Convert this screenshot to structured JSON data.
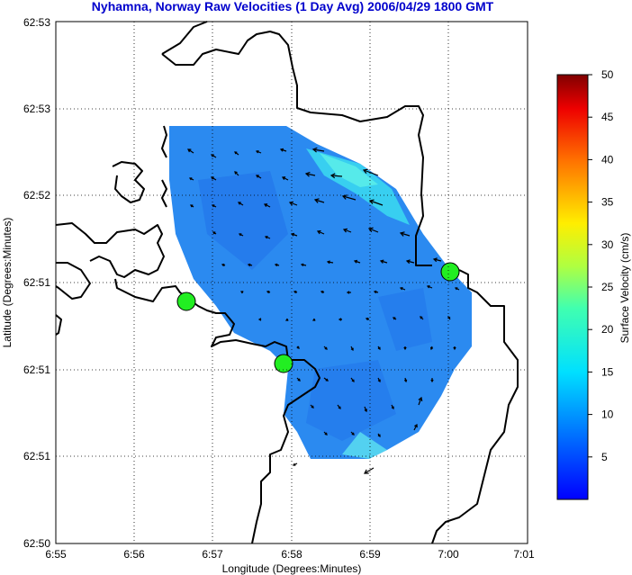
{
  "chart_data": {
    "type": "heatmap",
    "title": "Nyhamna, Norway Raw Velocities (1 Day Avg) 2006/04/29 1800 GMT",
    "xlabel": "Longitude (Degrees:Minutes)",
    "ylabel": "Latitude (Degrees:Minutes)",
    "x_ticks": [
      "6:55",
      "6:56",
      "6:57",
      "6:58",
      "6:59",
      "7:00",
      "7:01"
    ],
    "y_ticks": [
      "62:53",
      "62:53",
      "62:52",
      "62:51",
      "62:51",
      "62:51",
      "62:50"
    ],
    "grid": true,
    "colorbar": {
      "label": "Surface Velocity (cm/s)",
      "ticks": [
        "50",
        "45",
        "40",
        "35",
        "30",
        "25",
        "20",
        "15",
        "10",
        "5"
      ],
      "range": [
        0,
        50
      ],
      "position": "right"
    },
    "markers": [
      {
        "type": "station",
        "color": "#22ee22",
        "x": 6.945,
        "y": 62.843
      },
      {
        "type": "station",
        "color": "#22ee22",
        "x": 6.965,
        "y": 62.834
      },
      {
        "type": "station",
        "color": "#22ee22",
        "x": 7.0,
        "y": 62.848
      }
    ],
    "field_color": "#2b8af0",
    "high_velocity_color": "#3ad6f0"
  }
}
